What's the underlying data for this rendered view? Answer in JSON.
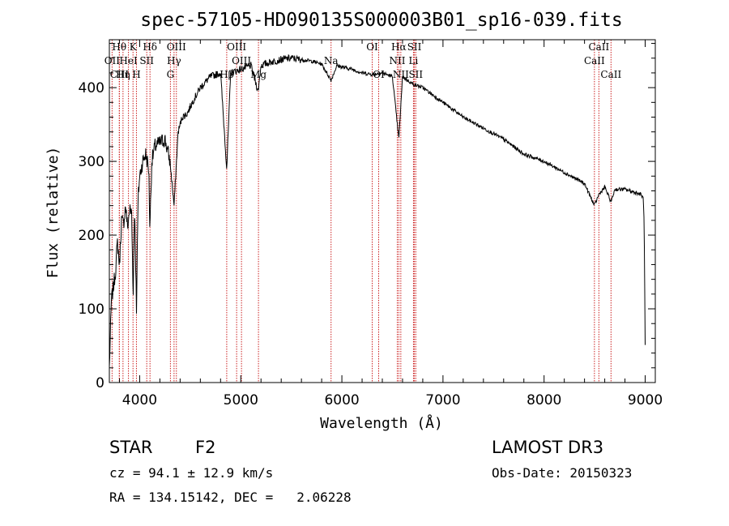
{
  "chart_data": {
    "type": "line",
    "title": "spec-57105-HD090135S000003B01_sp16-039.fits",
    "xlabel": "Wavelength (Å)",
    "ylabel": "Flux (relative)",
    "xlim": [
      3700,
      9100
    ],
    "ylim": [
      0,
      465
    ],
    "xticks": [
      4000,
      5000,
      6000,
      7000,
      8000,
      9000
    ],
    "yticks": [
      0,
      100,
      200,
      300,
      400
    ],
    "grid": false,
    "series": [
      {
        "name": "flux",
        "color": "#000000",
        "x": [
          3700,
          3720,
          3740,
          3760,
          3780,
          3800,
          3820,
          3840,
          3860,
          3880,
          3900,
          3920,
          3935,
          3950,
          3968,
          3985,
          4000,
          4030,
          4060,
          4090,
          4101,
          4120,
          4150,
          4200,
          4250,
          4300,
          4340,
          4380,
          4420,
          4470,
          4520,
          4600,
          4700,
          4800,
          4861,
          4900,
          5000,
          5100,
          5172,
          5200,
          5300,
          5400,
          5500,
          5600,
          5700,
          5800,
          5893,
          5950,
          6000,
          6100,
          6200,
          6300,
          6400,
          6500,
          6563,
          6600,
          6700,
          6800,
          6900,
          7000,
          7200,
          7400,
          7600,
          7800,
          8000,
          8200,
          8400,
          8498,
          8542,
          8600,
          8662,
          8700,
          8800,
          8900,
          8960,
          8980,
          8990,
          9000
        ],
        "y": [
          20,
          110,
          130,
          150,
          190,
          160,
          220,
          215,
          240,
          210,
          235,
          230,
          120,
          240,
          100,
          250,
          280,
          300,
          310,
          290,
          210,
          300,
          320,
          325,
          330,
          300,
          240,
          340,
          360,
          365,
          380,
          400,
          415,
          420,
          290,
          420,
          425,
          430,
          395,
          430,
          435,
          438,
          440,
          438,
          436,
          432,
          410,
          430,
          428,
          425,
          420,
          418,
          420,
          415,
          330,
          415,
          405,
          400,
          390,
          380,
          360,
          345,
          330,
          310,
          300,
          285,
          270,
          240,
          255,
          265,
          245,
          262,
          262,
          258,
          255,
          250,
          220,
          50
        ]
      }
    ],
    "spectral_lines": [
      {
        "label": "Hθ",
        "wl": 3798,
        "row": 0
      },
      {
        "label": "K",
        "wl": 3934,
        "row": 0
      },
      {
        "label": "Hδ",
        "wl": 4102,
        "row": 0
      },
      {
        "label": "OIII",
        "wl": 4363,
        "row": 0
      },
      {
        "label": "OIII",
        "wl": 4959,
        "row": 0
      },
      {
        "label": "OI",
        "wl": 6300,
        "row": 0
      },
      {
        "label": "Hα",
        "wl": 6563,
        "row": 0
      },
      {
        "label": "SII",
        "wl": 6717,
        "row": 0
      },
      {
        "label": "CaII",
        "wl": 8542,
        "row": 0
      },
      {
        "label": "OII",
        "wl": 3727,
        "row": 1
      },
      {
        "label": "HeI",
        "wl": 3889,
        "row": 1
      },
      {
        "label": "SII",
        "wl": 4070,
        "row": 1
      },
      {
        "label": "Hγ",
        "wl": 4340,
        "row": 1
      },
      {
        "label": "OIII",
        "wl": 5007,
        "row": 1
      },
      {
        "label": "Na",
        "wl": 5893,
        "row": 1
      },
      {
        "label": "NII",
        "wl": 6548,
        "row": 1
      },
      {
        "label": "Li",
        "wl": 6708,
        "row": 1
      },
      {
        "label": "CaII",
        "wl": 8498,
        "row": 1
      },
      {
        "label": "CIII",
        "wl": 3800,
        "row": 2
      },
      {
        "label": "Hη",
        "wl": 3835,
        "row": 2
      },
      {
        "label": "H",
        "wl": 3968,
        "row": 2
      },
      {
        "label": "G",
        "wl": 4304,
        "row": 2
      },
      {
        "label": "Hβ",
        "wl": 4861,
        "row": 2
      },
      {
        "label": "Mg",
        "wl": 5175,
        "row": 2
      },
      {
        "label": "OI",
        "wl": 6364,
        "row": 2
      },
      {
        "label": "NII",
        "wl": 6583,
        "row": 2
      },
      {
        "label": "SII",
        "wl": 6731,
        "row": 2
      },
      {
        "label": "CaII",
        "wl": 8662,
        "row": 2
      }
    ]
  },
  "info": {
    "object_class": "STAR",
    "subclass": "F2",
    "survey": "LAMOST DR3",
    "cz": "cz = 94.1 ± 12.9 km/s",
    "obs_date": "Obs-Date: 20150323",
    "coords": "RA = 134.15142, DEC =   2.06228"
  },
  "colors": {
    "line_marker": "#cc2222",
    "spectrum": "#000000"
  }
}
